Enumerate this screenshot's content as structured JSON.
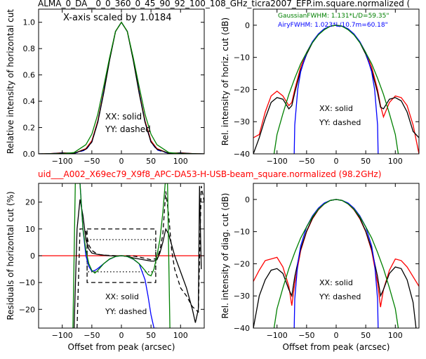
{
  "figure": {
    "top_title": "ALMA_0_DA__0_0_360_0_45_90_92_100_108_GHz_ticra2007_EFP.im.square.normalized (",
    "mid_title": "uid___A002_X69ec79_X9f8_APC-DA53-H-USB-beam_square.normalized (98.2GHz)",
    "mid_title_color": "#ff0000"
  },
  "colors": {
    "red": "#ff0000",
    "black": "#000000",
    "blue": "#0000ff",
    "green": "#008000"
  },
  "chart_data": [
    {
      "type": "line",
      "panel": "top-left",
      "xlabel": "",
      "ylabel": "Relative intensity of horizontal cut",
      "xlim": [
        -140,
        140
      ],
      "ylim": [
        0,
        1.1
      ],
      "xticks": [
        -100,
        -50,
        0,
        50,
        100
      ],
      "yticks": [
        0.0,
        0.2,
        0.4,
        0.6,
        0.8,
        1.0
      ],
      "yticklabels": [
        "0.0",
        "0.2",
        "0.4",
        "0.6",
        "0.8",
        "1.0"
      ],
      "annotations": [
        "X-axis scaled by 1.0184",
        "XX: solid",
        "YY: dashed"
      ],
      "series": [
        {
          "color": "red",
          "style": "solid",
          "x": [
            -140,
            -120,
            -100,
            -80,
            -60,
            -50,
            -40,
            -30,
            -20,
            -10,
            0,
            10,
            20,
            30,
            40,
            50,
            60,
            80,
            100,
            120,
            140
          ],
          "y": [
            0,
            0.002,
            0.008,
            0.004,
            0.04,
            0.1,
            0.25,
            0.47,
            0.72,
            0.93,
            1.0,
            0.93,
            0.72,
            0.47,
            0.25,
            0.1,
            0.04,
            0.004,
            0.008,
            0.002,
            0
          ]
        },
        {
          "color": "blue",
          "style": "dashed",
          "x": [
            -140,
            -120,
            -100,
            -80,
            -60,
            -50,
            -40,
            -30,
            -20,
            -10,
            0,
            10,
            20,
            30,
            40,
            50,
            60,
            80,
            100,
            120,
            140
          ],
          "y": [
            0,
            0.001,
            0.007,
            0.004,
            0.03,
            0.09,
            0.24,
            0.47,
            0.72,
            0.93,
            1.0,
            0.93,
            0.72,
            0.47,
            0.24,
            0.09,
            0.03,
            0.004,
            0.007,
            0.001,
            0
          ]
        },
        {
          "color": "black",
          "style": "solid",
          "x": [
            -140,
            -120,
            -100,
            -80,
            -60,
            -50,
            -40,
            -30,
            -20,
            -10,
            0,
            10,
            20,
            30,
            40,
            50,
            60,
            80,
            100,
            120,
            140
          ],
          "y": [
            0,
            0.002,
            0.006,
            0.005,
            0.035,
            0.09,
            0.24,
            0.46,
            0.71,
            0.93,
            1.0,
            0.93,
            0.71,
            0.46,
            0.24,
            0.09,
            0.035,
            0.005,
            0.006,
            0.002,
            0
          ]
        },
        {
          "color": "green",
          "style": "solid",
          "x": [
            -140,
            -120,
            -100,
            -80,
            -60,
            -50,
            -40,
            -30,
            -20,
            -10,
            0,
            10,
            20,
            30,
            40,
            50,
            60,
            80,
            100,
            120,
            140
          ],
          "y": [
            0,
            0,
            0.001,
            0.01,
            0.07,
            0.15,
            0.3,
            0.51,
            0.73,
            0.93,
            1.0,
            0.93,
            0.73,
            0.51,
            0.3,
            0.15,
            0.07,
            0.01,
            0.001,
            0,
            0
          ]
        }
      ]
    },
    {
      "type": "line",
      "panel": "top-right",
      "xlabel": "",
      "ylabel": "Rel. intensity of horiz. cut (dB)",
      "xlim": [
        -140,
        140
      ],
      "ylim": [
        -40,
        5
      ],
      "xticks": [
        -100,
        -50,
        0,
        50,
        100
      ],
      "yticks": [
        0,
        -10,
        -20,
        -30,
        -40
      ],
      "annotations": [
        "GaussianFWHM: 1.131*L/D=59.35\"",
        "AiryFWHM: 1.023*L/10.7m=60.18\"",
        "XX: solid",
        "YY: dashed"
      ],
      "annotation_colors": [
        "green",
        "blue",
        "black",
        "black"
      ],
      "series": [
        {
          "color": "red",
          "style": "solid",
          "x": [
            -140,
            -130,
            -120,
            -110,
            -100,
            -90,
            -80,
            -75,
            -70,
            -60,
            -50,
            -40,
            -30,
            -20,
            -10,
            0,
            10,
            20,
            30,
            40,
            50,
            60,
            70,
            75,
            80,
            90,
            100,
            110,
            120,
            130,
            140
          ],
          "y": [
            -35,
            -34,
            -27,
            -22,
            -20.5,
            -22,
            -25,
            -24,
            -20,
            -13,
            -8.5,
            -5.2,
            -2.8,
            -1.2,
            -0.3,
            0,
            -0.3,
            -1.2,
            -2.8,
            -5.2,
            -8.5,
            -13,
            -20,
            -25,
            -28.5,
            -24,
            -22,
            -22.5,
            -25,
            -31,
            -40
          ]
        },
        {
          "color": "black",
          "style": "solid",
          "x": [
            -140,
            -130,
            -120,
            -110,
            -100,
            -90,
            -80,
            -75,
            -70,
            -60,
            -50,
            -40,
            -30,
            -20,
            -10,
            0,
            10,
            20,
            30,
            40,
            50,
            60,
            70,
            75,
            80,
            90,
            100,
            110,
            120,
            130,
            140
          ],
          "y": [
            -40,
            -35,
            -29,
            -24,
            -22.5,
            -23,
            -26,
            -25,
            -21,
            -14,
            -9,
            -5.4,
            -2.9,
            -1.2,
            -0.3,
            0,
            -0.3,
            -1.2,
            -2.9,
            -5.4,
            -9,
            -14,
            -21,
            -25.5,
            -26,
            -23,
            -22.5,
            -23.5,
            -27,
            -33,
            -35
          ]
        },
        {
          "color": "blue",
          "style": "solid",
          "x": [
            -71,
            -70,
            -65,
            -60,
            -50,
            -40,
            -30,
            -20,
            -10,
            0,
            10,
            20,
            30,
            40,
            50,
            60,
            65,
            70,
            71
          ],
          "y": [
            -40,
            -31,
            -20,
            -14.5,
            -8.5,
            -5.1,
            -2.7,
            -1.1,
            -0.3,
            0,
            -0.3,
            -1.1,
            -2.7,
            -5.1,
            -8.5,
            -14.5,
            -20,
            -31,
            -40
          ]
        },
        {
          "color": "green",
          "style": "solid",
          "x": [
            -105,
            -100,
            -90,
            -80,
            -70,
            -60,
            -50,
            -40,
            -30,
            -20,
            -10,
            0,
            10,
            20,
            30,
            40,
            50,
            60,
            70,
            80,
            90,
            100,
            105
          ],
          "y": [
            -40,
            -34,
            -27.5,
            -21.5,
            -16.5,
            -12,
            -8.5,
            -5.4,
            -3,
            -1.4,
            -0.3,
            0,
            -0.3,
            -1.4,
            -3,
            -5.4,
            -8.5,
            -12,
            -16.5,
            -21.5,
            -27.5,
            -34,
            -40
          ]
        }
      ]
    },
    {
      "type": "line",
      "panel": "bottom-left",
      "xlabel": "Offset from peak (arcsec)",
      "ylabel": "Residuals of horizontal cut (%)",
      "xlim": [
        -140,
        140
      ],
      "ylim": [
        -27,
        27
      ],
      "xticks": [
        -100,
        -50,
        0,
        50,
        100
      ],
      "yticks": [
        20,
        10,
        0,
        -10,
        -20
      ],
      "annotations": [
        "XX: solid",
        "YY: dashed"
      ],
      "series": [
        {
          "color": "red",
          "style": "solid",
          "x": [
            -140,
            140
          ],
          "y": [
            0,
            0
          ]
        },
        {
          "color": "black",
          "style": "solid",
          "x": [
            -80,
            -75,
            -70,
            -65,
            -60,
            -55,
            -50,
            -40,
            -30,
            -20,
            -10,
            0,
            10,
            20,
            30,
            40,
            50,
            55,
            60,
            65,
            70,
            75,
            80,
            90,
            100,
            110,
            120,
            125,
            130,
            132,
            135
          ],
          "y": [
            -27,
            10,
            21,
            15,
            6,
            2.5,
            1,
            0.5,
            0.2,
            0,
            -0.1,
            0,
            -0.3,
            -0.8,
            -1.2,
            -1.6,
            -2,
            -2,
            -1.5,
            1,
            5,
            10,
            8,
            0,
            -6,
            -12,
            -20,
            -25,
            -20,
            26,
            -5
          ]
        },
        {
          "color": "black",
          "style": "dashed",
          "x": [
            -75,
            -70,
            -65,
            -60,
            -55,
            -50,
            -40,
            -30,
            -20,
            -10,
            0,
            10,
            20,
            30,
            40,
            50,
            60,
            65,
            70,
            75,
            80,
            85,
            90,
            100,
            110,
            120,
            130,
            135,
            140
          ],
          "y": [
            -27,
            10,
            10,
            9,
            4,
            2,
            0.5,
            0.2,
            0.1,
            0,
            0,
            0,
            -0.1,
            -0.5,
            -1,
            -1.5,
            -1,
            2,
            8,
            24,
            15,
            2,
            -5,
            -12,
            -15,
            -19,
            -21,
            26,
            20
          ]
        },
        {
          "color": "black",
          "style": "dashed",
          "shape": "rectangle",
          "x": [
            -58,
            58,
            58,
            -58,
            -58
          ],
          "y": [
            10,
            10,
            -10,
            -10,
            10
          ]
        },
        {
          "color": "black",
          "style": "dotted",
          "shape": "rectangle",
          "x": [
            -58,
            58,
            58,
            -58,
            -58
          ],
          "y": [
            6,
            6,
            -6,
            -6,
            6
          ]
        },
        {
          "color": "blue",
          "style": "solid",
          "x": [
            -70,
            -65,
            -60,
            -55,
            -50,
            -45,
            -40,
            -30,
            -20,
            -10,
            0,
            10,
            20,
            30,
            40,
            45,
            50,
            55,
            60
          ],
          "y": [
            27,
            10,
            0,
            -4,
            -5.8,
            -5.5,
            -4.8,
            -3,
            -1.3,
            -0.3,
            0,
            -0.3,
            -1.3,
            -3,
            -9,
            -15,
            -22,
            -27,
            -27
          ]
        },
        {
          "color": "green",
          "style": "solid",
          "x": [
            -82,
            -78,
            -74,
            -70,
            -65,
            -60,
            -55,
            -50,
            -45,
            -40,
            -30,
            -20,
            -10,
            0,
            10,
            20,
            30,
            40,
            45,
            50,
            55,
            60,
            65,
            70,
            74,
            78,
            82
          ],
          "y": [
            -27,
            27,
            27,
            27,
            10,
            2,
            -3,
            -5.5,
            -6.5,
            -5.5,
            -3,
            -1.2,
            -0.3,
            0,
            -0.3,
            -1.2,
            -3,
            -5.5,
            -7,
            -7.5,
            -5,
            0,
            6,
            16,
            27,
            27,
            -27
          ]
        }
      ]
    },
    {
      "type": "line",
      "panel": "bottom-right",
      "xlabel": "Offset from peak (arcsec)",
      "ylabel": "Rel. intensity of diag. cut (dB)",
      "xlim": [
        -140,
        140
      ],
      "ylim": [
        -40,
        5
      ],
      "xticks": [
        -100,
        -50,
        0,
        50,
        100
      ],
      "yticks": [
        0,
        -10,
        -20,
        -30,
        -40
      ],
      "annotations": [
        "XX: solid",
        "YY: dashed"
      ],
      "series": [
        {
          "color": "red",
          "style": "solid",
          "x": [
            -140,
            -130,
            -120,
            -110,
            -100,
            -90,
            -80,
            -75,
            -70,
            -60,
            -50,
            -40,
            -30,
            -20,
            -10,
            0,
            10,
            20,
            30,
            40,
            50,
            60,
            70,
            75,
            80,
            90,
            100,
            110,
            120,
            130,
            140
          ],
          "y": [
            -25.5,
            -22,
            -19,
            -18.5,
            -18,
            -21,
            -27,
            -33,
            -26,
            -16,
            -10,
            -6,
            -3.2,
            -1.4,
            -0.3,
            0,
            -0.3,
            -1.4,
            -3.2,
            -6,
            -10,
            -16,
            -26,
            -33.5,
            -28,
            -22,
            -18.5,
            -19,
            -21,
            -24,
            -27
          ]
        },
        {
          "color": "black",
          "style": "solid",
          "x": [
            -140,
            -135,
            -130,
            -120,
            -110,
            -100,
            -90,
            -80,
            -75,
            -70,
            -60,
            -50,
            -40,
            -30,
            -20,
            -10,
            0,
            10,
            20,
            30,
            40,
            50,
            60,
            70,
            75,
            80,
            90,
            100,
            110,
            120,
            130,
            135
          ],
          "y": [
            -40,
            -35,
            -30,
            -25,
            -22,
            -21.5,
            -23,
            -28,
            -30,
            -24,
            -15.5,
            -9.8,
            -5.8,
            -3.1,
            -1.3,
            -0.3,
            0,
            -0.3,
            -1.3,
            -3.1,
            -5.8,
            -9.8,
            -15.5,
            -24,
            -30,
            -28,
            -23,
            -21,
            -21.5,
            -25,
            -32,
            -40
          ]
        },
        {
          "color": "blue",
          "style": "solid",
          "x": [
            -71,
            -70,
            -65,
            -60,
            -50,
            -40,
            -30,
            -20,
            -10,
            0,
            10,
            20,
            30,
            40,
            50,
            60,
            65,
            70,
            71
          ],
          "y": [
            -40,
            -31,
            -20,
            -14.5,
            -8.5,
            -5.1,
            -2.7,
            -1.1,
            -0.3,
            0,
            -0.3,
            -1.1,
            -2.7,
            -5.1,
            -8.5,
            -14.5,
            -20,
            -31,
            -40
          ]
        },
        {
          "color": "green",
          "style": "solid",
          "x": [
            -105,
            -100,
            -90,
            -80,
            -70,
            -60,
            -50,
            -40,
            -30,
            -20,
            -10,
            0,
            10,
            20,
            30,
            40,
            50,
            60,
            70,
            80,
            90,
            100,
            105
          ],
          "y": [
            -40,
            -34,
            -27.5,
            -21.5,
            -16.5,
            -12,
            -8.5,
            -5.4,
            -3,
            -1.4,
            -0.3,
            0,
            -0.3,
            -1.4,
            -3,
            -5.4,
            -8.5,
            -12,
            -16.5,
            -21.5,
            -27.5,
            -34,
            -40
          ]
        }
      ]
    }
  ]
}
